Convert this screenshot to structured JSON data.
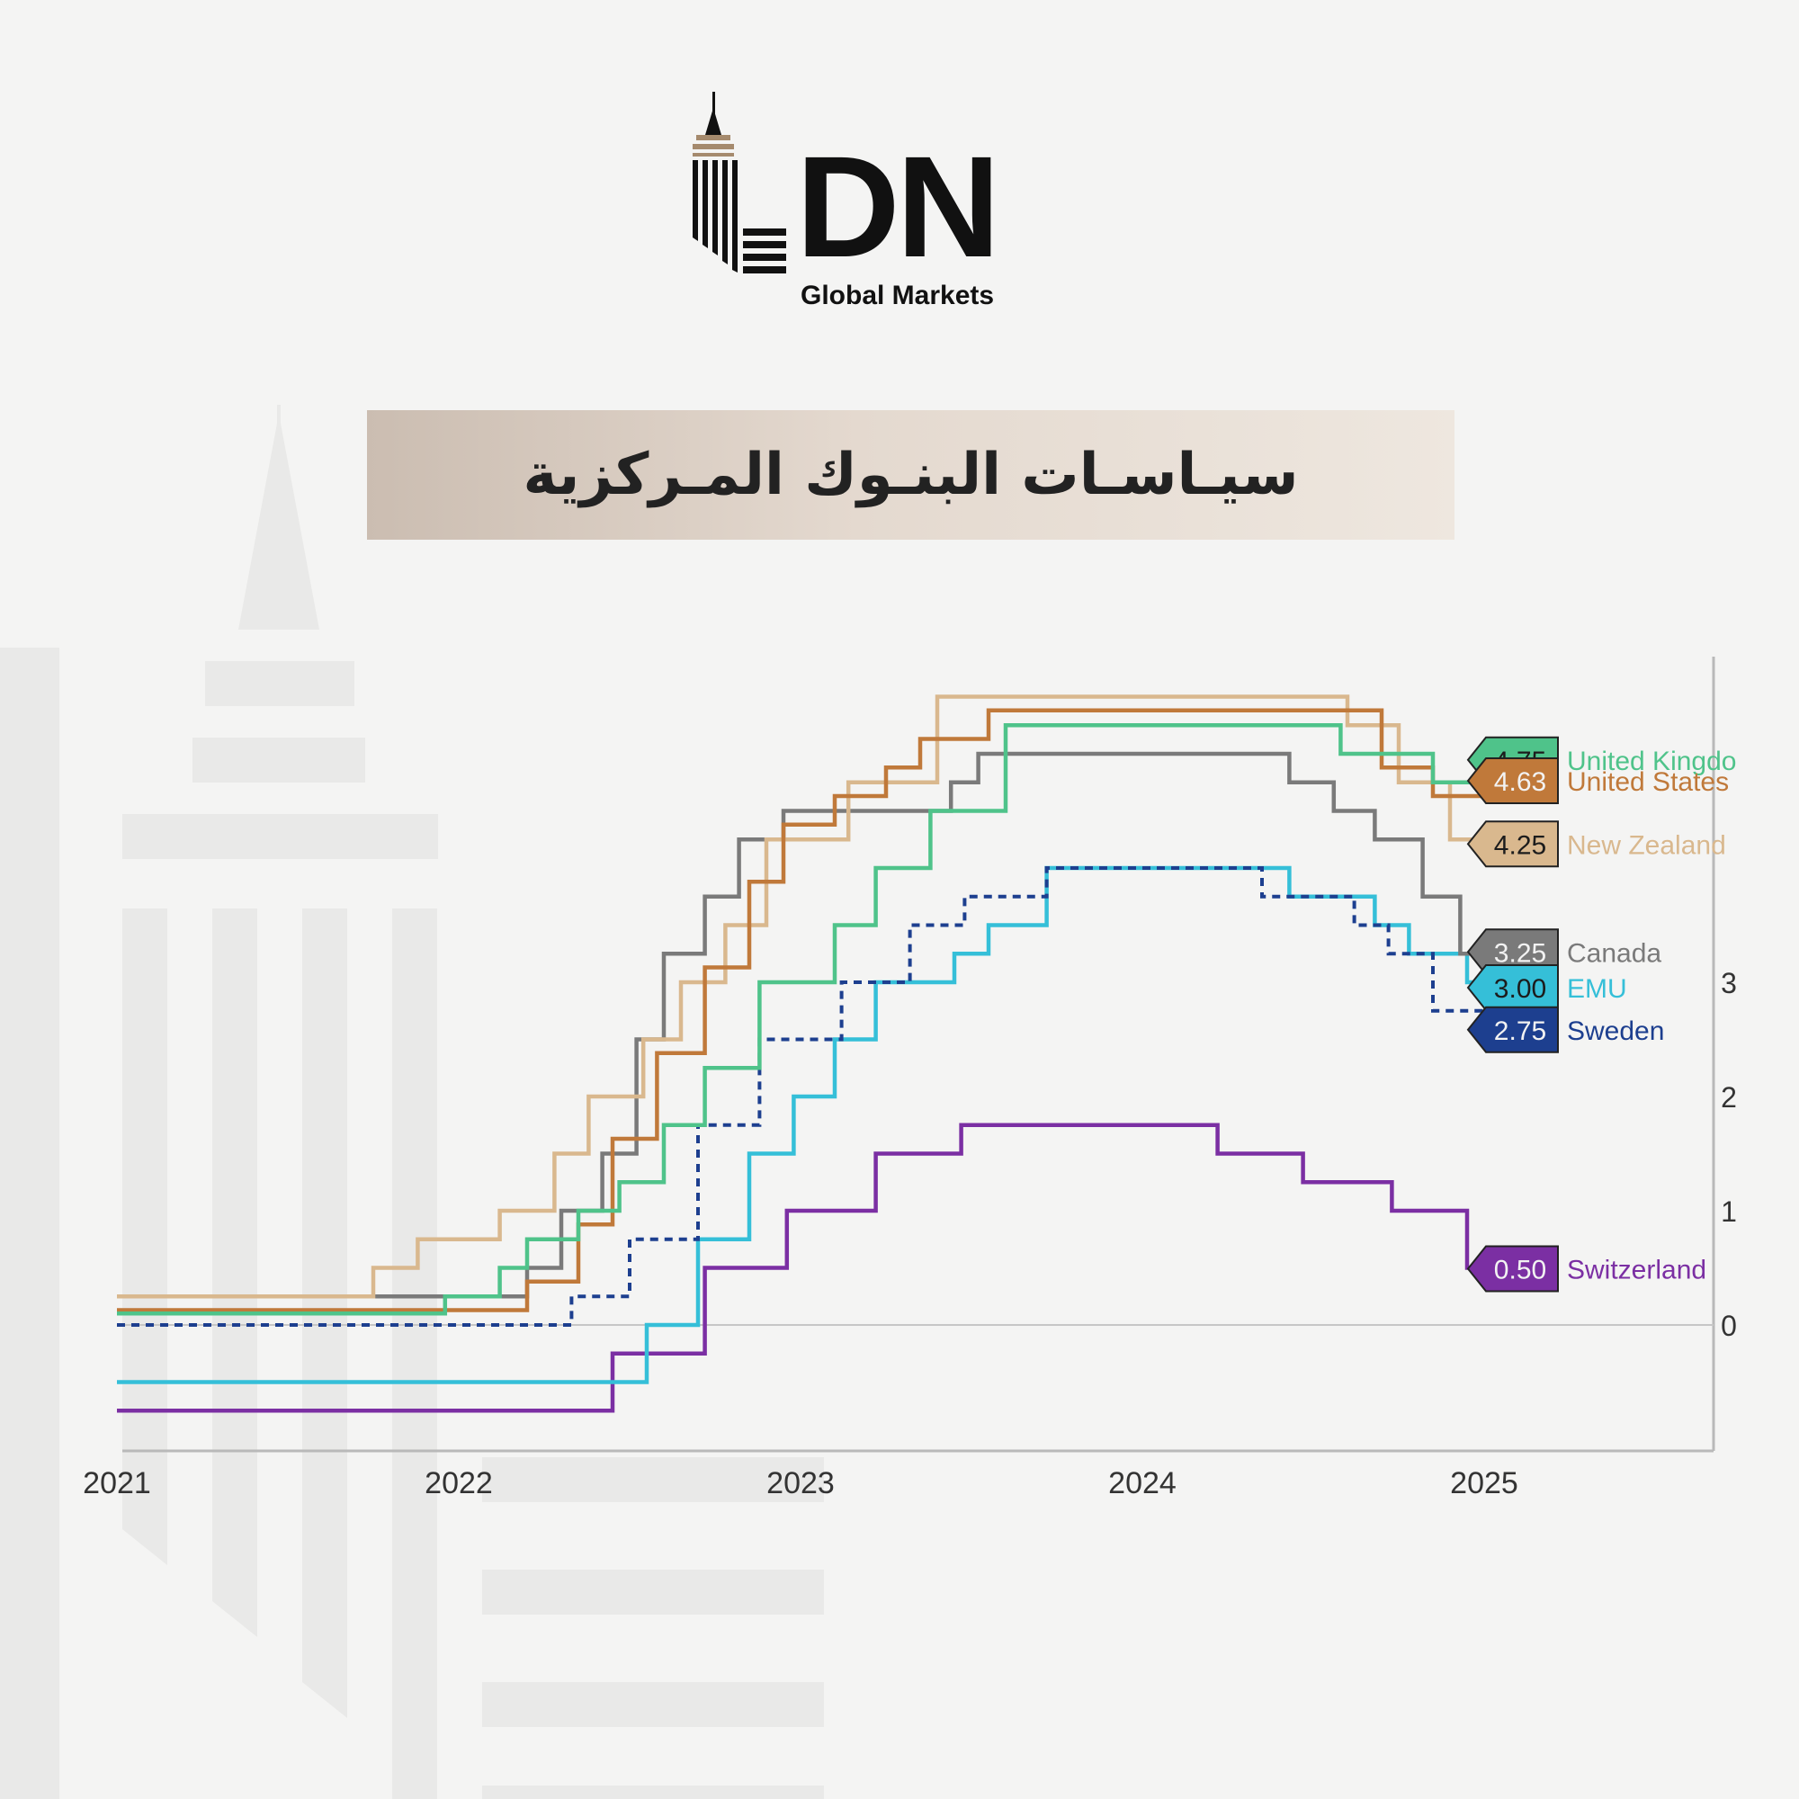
{
  "brand": {
    "name": "DN",
    "tagline": "Global Markets"
  },
  "title": "سيـاسـات البنـوك المـركزية",
  "colors": {
    "uk": "#4fc38a",
    "us": "#c0793a",
    "nz": "#d9b88e",
    "canada": "#7a7a7a",
    "emu": "#35bfd8",
    "sweden": "#1d3f8f",
    "switzerland": "#7b2fa3",
    "banner": "#d8cbbf"
  },
  "chart_data": {
    "type": "line",
    "title": "",
    "xlabel": "",
    "ylabel": "",
    "x_ticks": [
      "2021",
      "2022",
      "2023",
      "2024",
      "2025"
    ],
    "y_ticks": [
      "0",
      "1",
      "2",
      "3"
    ],
    "xlim": [
      2021.0,
      2025.75
    ],
    "ylim": [
      -1.05,
      5.9
    ],
    "series": [
      {
        "name": "United Kingdom",
        "label_text": "United Kingdo",
        "value_label": "4.75",
        "color_key": "uk",
        "dashed": false,
        "points": [
          [
            2021.0,
            0.1
          ],
          [
            2021.96,
            0.25
          ],
          [
            2022.12,
            0.5
          ],
          [
            2022.2,
            0.75
          ],
          [
            2022.35,
            1.0
          ],
          [
            2022.47,
            1.25
          ],
          [
            2022.6,
            1.75
          ],
          [
            2022.72,
            2.25
          ],
          [
            2022.88,
            3.0
          ],
          [
            2023.1,
            3.5
          ],
          [
            2023.22,
            4.0
          ],
          [
            2023.38,
            4.5
          ],
          [
            2023.6,
            5.0
          ],
          [
            2023.6,
            5.25
          ],
          [
            2024.58,
            5.0
          ],
          [
            2024.85,
            4.75
          ],
          [
            2025.0,
            4.75
          ]
        ]
      },
      {
        "name": "United States",
        "label_text": "United States",
        "value_label": "4.63",
        "color_key": "us",
        "dashed": false,
        "points": [
          [
            2021.0,
            0.13
          ],
          [
            2022.2,
            0.38
          ],
          [
            2022.35,
            0.88
          ],
          [
            2022.45,
            1.63
          ],
          [
            2022.58,
            2.38
          ],
          [
            2022.72,
            3.13
          ],
          [
            2022.85,
            3.88
          ],
          [
            2022.95,
            4.38
          ],
          [
            2023.1,
            4.63
          ],
          [
            2023.25,
            4.88
          ],
          [
            2023.35,
            5.13
          ],
          [
            2023.55,
            5.38
          ],
          [
            2024.7,
            4.88
          ],
          [
            2024.85,
            4.63
          ],
          [
            2025.0,
            4.63
          ]
        ]
      },
      {
        "name": "New Zealand",
        "label_text": "New Zealand",
        "value_label": "4.25",
        "color_key": "nz",
        "dashed": false,
        "points": [
          [
            2021.0,
            0.25
          ],
          [
            2021.75,
            0.5
          ],
          [
            2021.88,
            0.75
          ],
          [
            2022.12,
            1.0
          ],
          [
            2022.28,
            1.5
          ],
          [
            2022.38,
            2.0
          ],
          [
            2022.54,
            2.5
          ],
          [
            2022.65,
            3.0
          ],
          [
            2022.78,
            3.5
          ],
          [
            2022.9,
            4.25
          ],
          [
            2023.14,
            4.75
          ],
          [
            2023.4,
            5.25
          ],
          [
            2023.4,
            5.5
          ],
          [
            2024.6,
            5.25
          ],
          [
            2024.75,
            4.75
          ],
          [
            2024.9,
            4.25
          ],
          [
            2025.0,
            4.25
          ]
        ]
      },
      {
        "name": "Canada",
        "label_text": "Canada",
        "value_label": "3.25",
        "color_key": "canada",
        "dashed": false,
        "points": [
          [
            2021.0,
            0.25
          ],
          [
            2022.2,
            0.5
          ],
          [
            2022.3,
            1.0
          ],
          [
            2022.42,
            1.5
          ],
          [
            2022.52,
            2.5
          ],
          [
            2022.6,
            3.25
          ],
          [
            2022.72,
            3.75
          ],
          [
            2022.82,
            4.25
          ],
          [
            2022.95,
            4.5
          ],
          [
            2023.1,
            4.5
          ],
          [
            2023.18,
            4.5
          ],
          [
            2023.44,
            4.75
          ],
          [
            2023.52,
            5.0
          ],
          [
            2024.43,
            4.75
          ],
          [
            2024.56,
            4.5
          ],
          [
            2024.68,
            4.25
          ],
          [
            2024.82,
            3.75
          ],
          [
            2024.93,
            3.25
          ],
          [
            2025.0,
            3.25
          ]
        ]
      },
      {
        "name": "EMU",
        "label_text": "EMU",
        "value_label": "3.00",
        "color_key": "emu",
        "dashed": false,
        "points": [
          [
            2021.0,
            -0.5
          ],
          [
            2022.55,
            0.0
          ],
          [
            2022.7,
            0.75
          ],
          [
            2022.85,
            1.5
          ],
          [
            2022.98,
            2.0
          ],
          [
            2023.1,
            2.5
          ],
          [
            2023.22,
            3.0
          ],
          [
            2023.45,
            3.25
          ],
          [
            2023.55,
            3.5
          ],
          [
            2023.72,
            4.0
          ],
          [
            2024.43,
            3.75
          ],
          [
            2024.68,
            3.5
          ],
          [
            2024.78,
            3.25
          ],
          [
            2024.95,
            3.0
          ],
          [
            2025.0,
            3.0
          ]
        ]
      },
      {
        "name": "Sweden",
        "label_text": "Sweden",
        "value_label": "2.75",
        "color_key": "sweden",
        "dashed": true,
        "points": [
          [
            2021.0,
            0.0
          ],
          [
            2022.33,
            0.25
          ],
          [
            2022.5,
            0.75
          ],
          [
            2022.7,
            1.75
          ],
          [
            2022.88,
            2.5
          ],
          [
            2023.12,
            3.0
          ],
          [
            2023.32,
            3.5
          ],
          [
            2023.48,
            3.75
          ],
          [
            2023.72,
            4.0
          ],
          [
            2024.35,
            3.75
          ],
          [
            2024.62,
            3.5
          ],
          [
            2024.72,
            3.25
          ],
          [
            2024.85,
            2.75
          ],
          [
            2025.0,
            2.75
          ]
        ]
      },
      {
        "name": "Switzerland",
        "label_text": "Switzerland",
        "value_label": "0.50",
        "color_key": "switzerland",
        "dashed": false,
        "points": [
          [
            2021.0,
            -0.75
          ],
          [
            2022.45,
            -0.25
          ],
          [
            2022.72,
            0.5
          ],
          [
            2022.96,
            1.0
          ],
          [
            2023.22,
            1.5
          ],
          [
            2023.47,
            1.75
          ],
          [
            2024.22,
            1.5
          ],
          [
            2024.47,
            1.25
          ],
          [
            2024.73,
            1.0
          ],
          [
            2024.95,
            0.5
          ],
          [
            2025.0,
            0.5
          ]
        ]
      }
    ]
  }
}
